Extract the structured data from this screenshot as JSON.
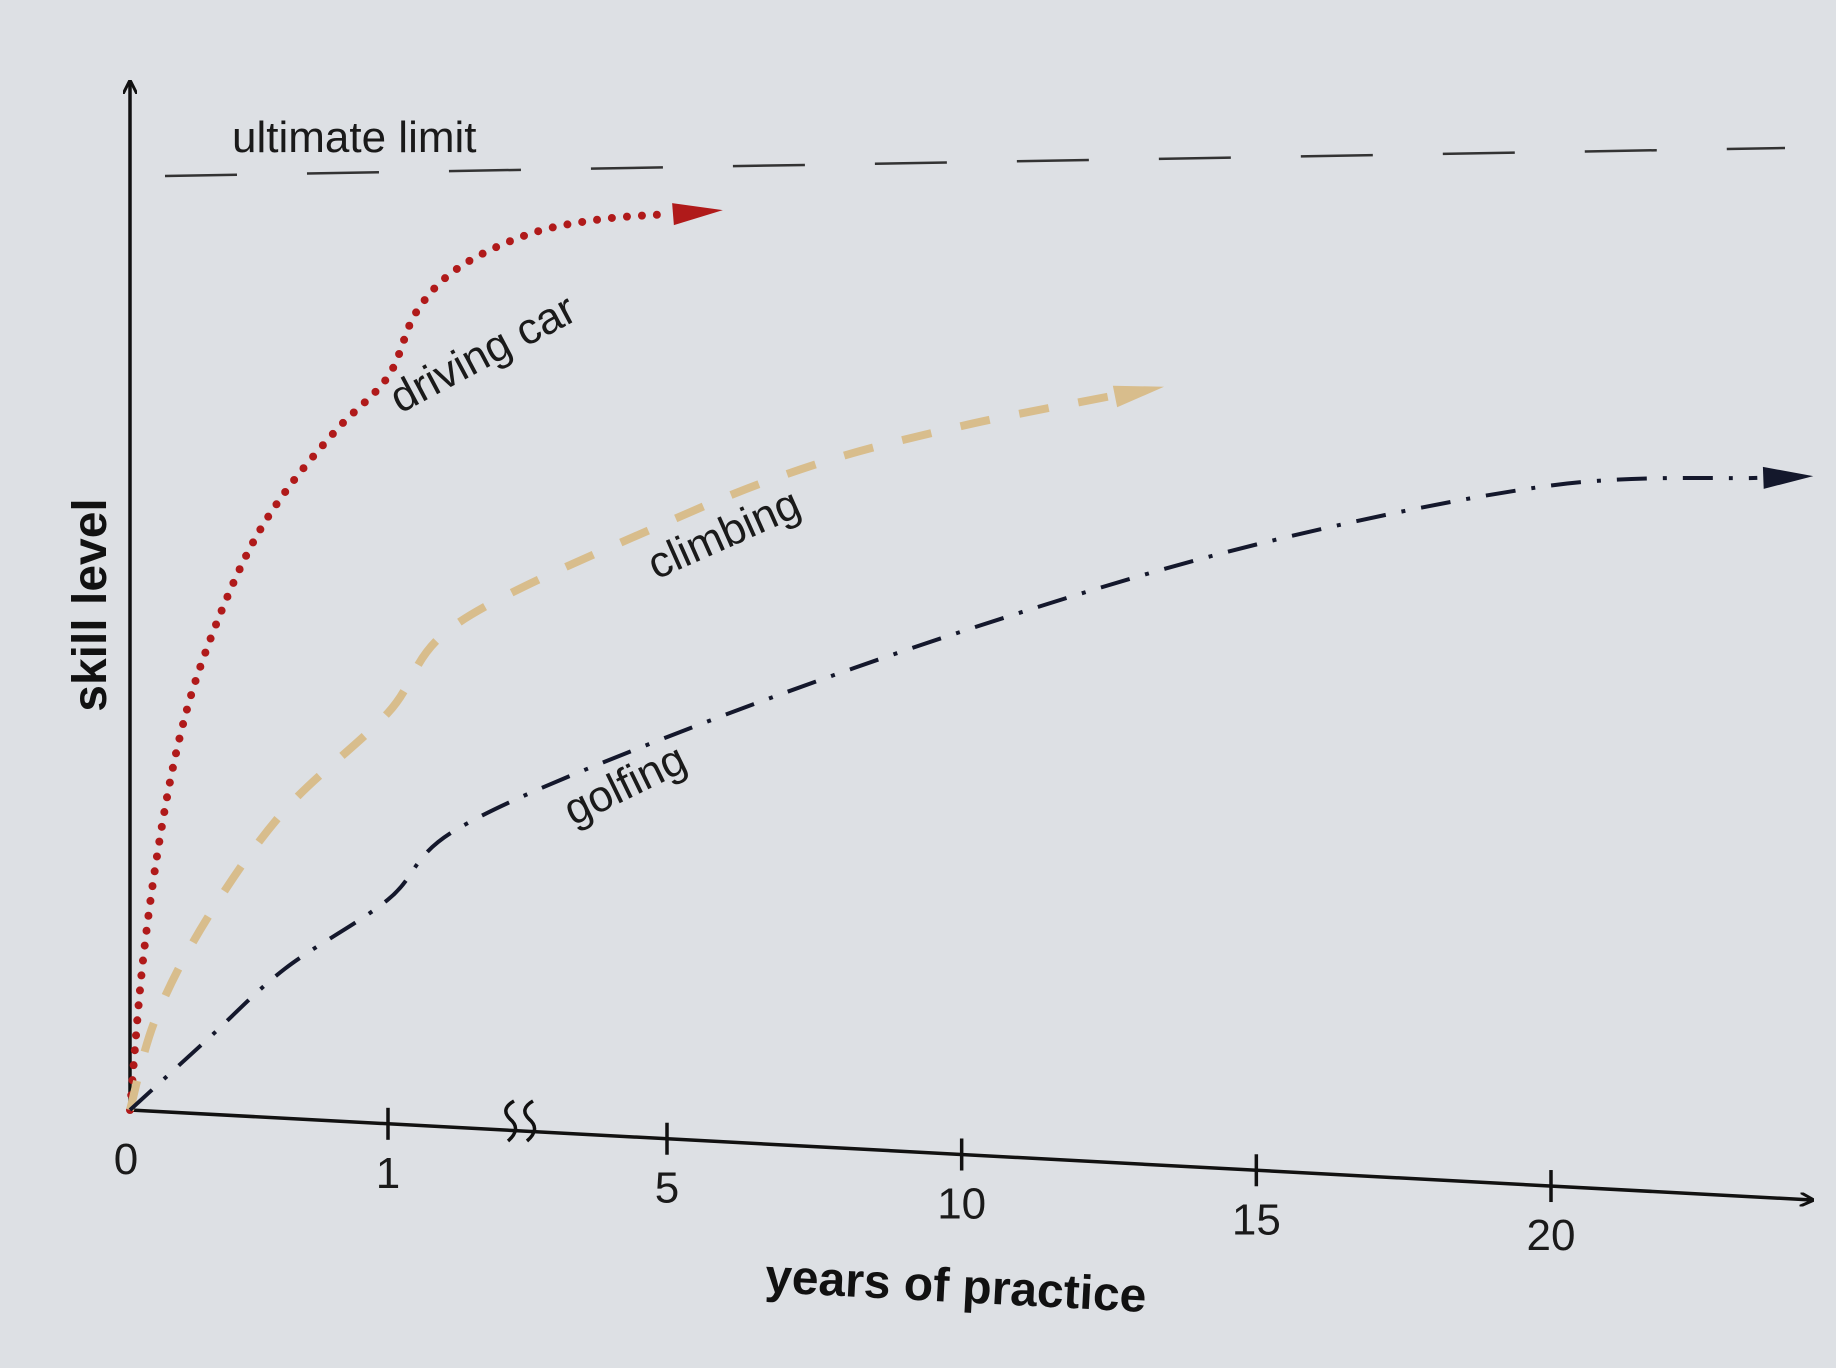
{
  "chart_data": {
    "type": "line",
    "title": "",
    "xlabel": "years of practice",
    "ylabel": "skill level",
    "x_ticks": [
      "0",
      "1",
      "5",
      "10",
      "15",
      "20"
    ],
    "x_axis_break": "between 1 and 5",
    "ylim": [
      0,
      100
    ],
    "grid": false,
    "reference_line": {
      "label": "ultimate limit",
      "value": 100,
      "style": "dashed",
      "color": "#333333"
    },
    "series": [
      {
        "name": "driving car",
        "style": "dotted",
        "color": "#b01a1a",
        "points": [
          [
            0,
            0
          ],
          [
            0.05,
            16
          ],
          [
            0.12,
            30
          ],
          [
            0.2,
            41
          ],
          [
            0.3,
            50
          ],
          [
            0.45,
            60
          ],
          [
            0.6,
            67
          ],
          [
            0.8,
            74
          ],
          [
            1,
            80
          ],
          [
            1.4,
            87
          ],
          [
            2,
            92
          ],
          [
            3,
            96
          ],
          [
            4,
            98
          ],
          [
            5,
            99
          ]
        ]
      },
      {
        "name": "climbing",
        "style": "dashed",
        "color": "#d8bd8c",
        "points": [
          [
            0,
            0
          ],
          [
            0.1,
            10
          ],
          [
            0.3,
            21
          ],
          [
            0.6,
            33
          ],
          [
            1,
            44
          ],
          [
            2,
            54
          ],
          [
            5,
            66
          ],
          [
            7.5,
            73
          ],
          [
            10,
            78
          ],
          [
            12.5,
            82
          ]
        ]
      },
      {
        "name": "golfing",
        "style": "dash-dot",
        "color": "#14182c",
        "points": [
          [
            0,
            0
          ],
          [
            0.3,
            8
          ],
          [
            0.6,
            16
          ],
          [
            1,
            24
          ],
          [
            2,
            32
          ],
          [
            5,
            43
          ],
          [
            10,
            56
          ],
          [
            15,
            67
          ],
          [
            20,
            75
          ],
          [
            23.5,
            77
          ]
        ]
      }
    ]
  }
}
